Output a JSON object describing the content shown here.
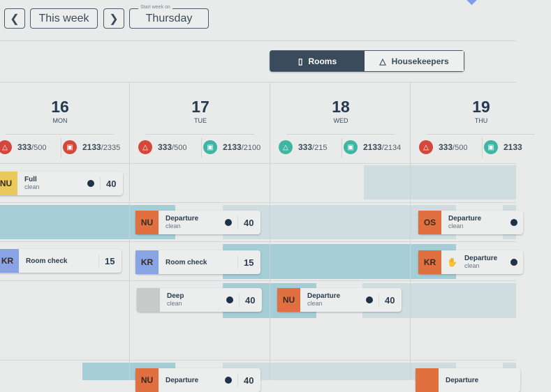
{
  "toolbar": {
    "prev_icon": "chevron-left-icon",
    "this_week": "This week",
    "next_icon": "chevron-right-icon",
    "start_week_label": "Start week on",
    "start_week_value": "Thursday"
  },
  "view_toggle": {
    "rooms": "Rooms",
    "housekeepers": "Housekeepers",
    "active": "Rooms",
    "active_color": "#3a4b5b"
  },
  "days": [
    {
      "num": "16",
      "dow": "MON",
      "stats": [
        {
          "icon": "broom-icon",
          "status": "red",
          "value": "333",
          "total": "/500"
        },
        {
          "icon": "bed-icon",
          "status": "red",
          "value": "2133",
          "total": "/2335"
        }
      ]
    },
    {
      "num": "17",
      "dow": "TUE",
      "stats": [
        {
          "icon": "broom-icon",
          "status": "red",
          "value": "333",
          "total": "/500"
        },
        {
          "icon": "bed-icon",
          "status": "teal",
          "value": "2133",
          "total": "/2100"
        }
      ]
    },
    {
      "num": "18",
      "dow": "WED",
      "stats": [
        {
          "icon": "broom-icon",
          "status": "teal",
          "value": "333",
          "total": "/215"
        },
        {
          "icon": "bed-icon",
          "status": "teal",
          "value": "2133",
          "total": "/2134"
        }
      ]
    },
    {
      "num": "19",
      "dow": "THU",
      "stats": [
        {
          "icon": "broom-icon",
          "status": "red",
          "value": "333",
          "total": "/500"
        },
        {
          "icon": "bed-icon",
          "status": "teal",
          "value": "2133",
          "total": ""
        }
      ]
    }
  ],
  "colors": {
    "red": "#d4483c",
    "teal": "#3fb5a3",
    "orange": "#e07040",
    "yellow": "#e8c95a",
    "blue": "#88a4e4",
    "grey": "#c8c9c9"
  },
  "cards": [
    {
      "initials": "NU",
      "color": "yellow",
      "title": "Full",
      "subtitle": "clean",
      "dot": true,
      "value": "40"
    },
    {
      "initials": "NU",
      "color": "orange",
      "title": "Departure",
      "subtitle": "clean",
      "dot": true,
      "value": "40"
    },
    {
      "initials": "OS",
      "color": "orange",
      "title": "Departure",
      "subtitle": "clean",
      "dot": true,
      "value": ""
    },
    {
      "initials": "KR",
      "color": "blue",
      "title": "Room check",
      "subtitle": "",
      "dot": false,
      "value": "15"
    },
    {
      "initials": "KR",
      "color": "blue",
      "title": "Room check",
      "subtitle": "",
      "dot": false,
      "value": "15"
    },
    {
      "initials": "KR",
      "color": "orange",
      "title": "Departure",
      "subtitle": "clean",
      "dot": true,
      "value": "",
      "hand": true
    },
    {
      "initials": "",
      "color": "grey",
      "title": "Deep",
      "subtitle": "clean",
      "dot": true,
      "value": "40"
    },
    {
      "initials": "NU",
      "color": "orange",
      "title": "Departure",
      "subtitle": "clean",
      "dot": true,
      "value": "40"
    },
    {
      "initials": "NU",
      "color": "orange",
      "title": "Departure",
      "subtitle": "",
      "dot": true,
      "value": "40"
    },
    {
      "initials": "",
      "color": "orange",
      "title": "Departure",
      "subtitle": "",
      "dot": false,
      "value": ""
    }
  ]
}
